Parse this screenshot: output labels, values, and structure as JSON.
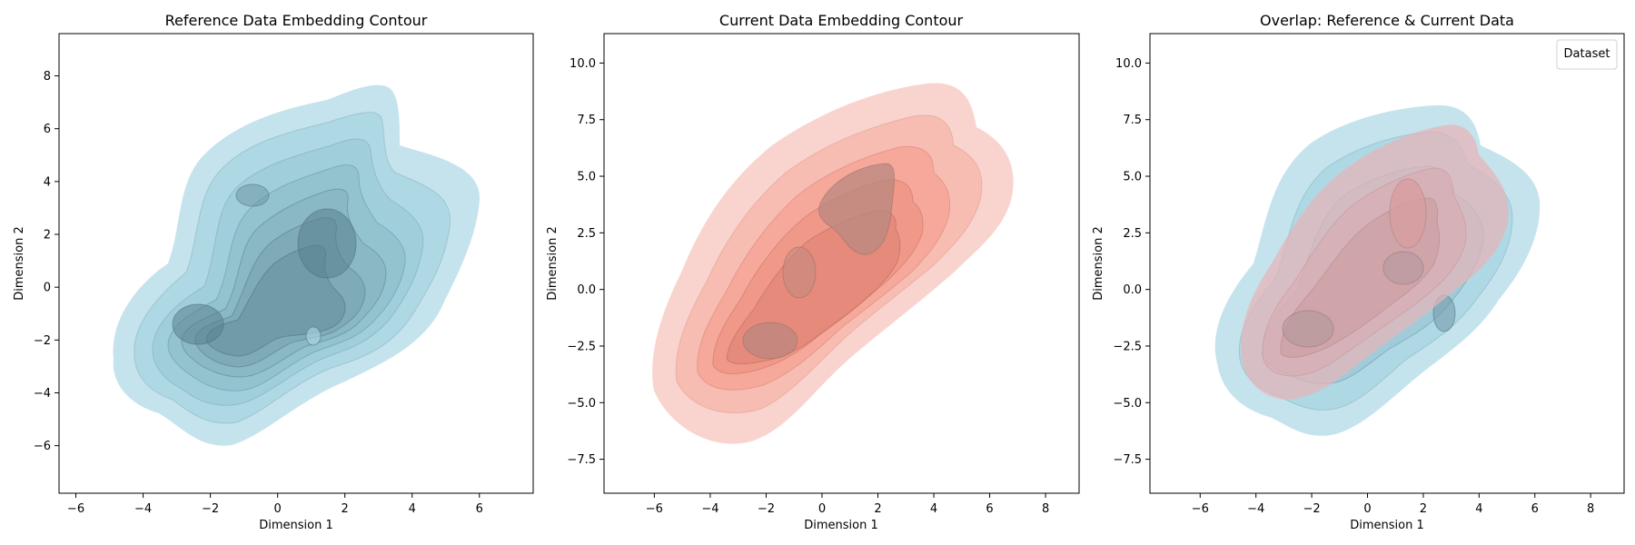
{
  "figure": {
    "panels": [
      {
        "title": "Reference Data Embedding Contour",
        "xlabel": "Dimension 1",
        "ylabel": "Dimension 2",
        "xticks": [
          "−6",
          "−4",
          "−2",
          "0",
          "2",
          "4",
          "6"
        ],
        "yticks": [
          "−6",
          "−4",
          "−2",
          "0",
          "2",
          "4",
          "6",
          "8"
        ]
      },
      {
        "title": "Current Data Embedding Contour",
        "xlabel": "Dimension 1",
        "ylabel": "Dimension 2",
        "xticks": [
          "−6",
          "−4",
          "−2",
          "0",
          "2",
          "4",
          "6",
          "8"
        ],
        "yticks": [
          "−7.5",
          "−5.0",
          "−2.5",
          "0.0",
          "2.5",
          "5.0",
          "7.5",
          "10.0"
        ]
      },
      {
        "title": "Overlap: Reference & Current Data",
        "xlabel": "Dimension 1",
        "ylabel": "Dimension 2",
        "xticks": [
          "−6",
          "−4",
          "−2",
          "0",
          "2",
          "4",
          "6",
          "8"
        ],
        "yticks": [
          "−7.5",
          "−5.0",
          "−2.5",
          "0.0",
          "2.5",
          "5.0",
          "7.5",
          "10.0"
        ],
        "legend_title": "Dataset"
      }
    ]
  },
  "chart_data": [
    {
      "type": "contour",
      "title": "Reference Data Embedding Contour",
      "xlabel": "Dimension 1",
      "ylabel": "Dimension 2",
      "xlim": [
        -6.5,
        7.6
      ],
      "ylim": [
        -7.8,
        9.6
      ],
      "xticks": [
        -6,
        -4,
        -2,
        0,
        2,
        4,
        6
      ],
      "yticks": [
        -6,
        -4,
        -2,
        0,
        2,
        4,
        6,
        8
      ],
      "fill_color": "#add8e6",
      "modes": [
        {
          "x": -2.0,
          "y": -1.5
        },
        {
          "x": -1.0,
          "y": 3.2
        },
        {
          "x": 1.5,
          "y": 1.5
        },
        {
          "x": 1.0,
          "y": -1.8
        }
      ]
    },
    {
      "type": "contour",
      "title": "Current Data Embedding Contour",
      "xlabel": "Dimension 1",
      "ylabel": "Dimension 2",
      "xlim": [
        -7.8,
        9.2
      ],
      "ylim": [
        -9.0,
        11.3
      ],
      "xticks": [
        -6,
        -4,
        -2,
        0,
        2,
        4,
        6,
        8
      ],
      "yticks": [
        -7.5,
        -5.0,
        -2.5,
        0.0,
        2.5,
        5.0,
        7.5,
        10.0
      ],
      "fill_color": "#fa8072",
      "modes": [
        {
          "x": -1.5,
          "y": -2.0
        },
        {
          "x": 2.0,
          "y": 3.5
        },
        {
          "x": -0.5,
          "y": 1.5
        }
      ]
    },
    {
      "type": "contour",
      "title": "Overlap: Reference & Current Data",
      "xlabel": "Dimension 1",
      "ylabel": "Dimension 2",
      "xlim": [
        -7.8,
        9.2
      ],
      "ylim": [
        -9.0,
        11.3
      ],
      "xticks": [
        -6,
        -4,
        -2,
        0,
        2,
        4,
        6,
        8
      ],
      "yticks": [
        -7.5,
        -5.0,
        -2.5,
        0.0,
        2.5,
        5.0,
        7.5,
        10.0
      ],
      "legend": {
        "title": "Dataset",
        "position": "top-right"
      },
      "series": [
        {
          "fill_color": "#add8e6"
        },
        {
          "fill_color": "#f4c2c2"
        }
      ]
    }
  ]
}
